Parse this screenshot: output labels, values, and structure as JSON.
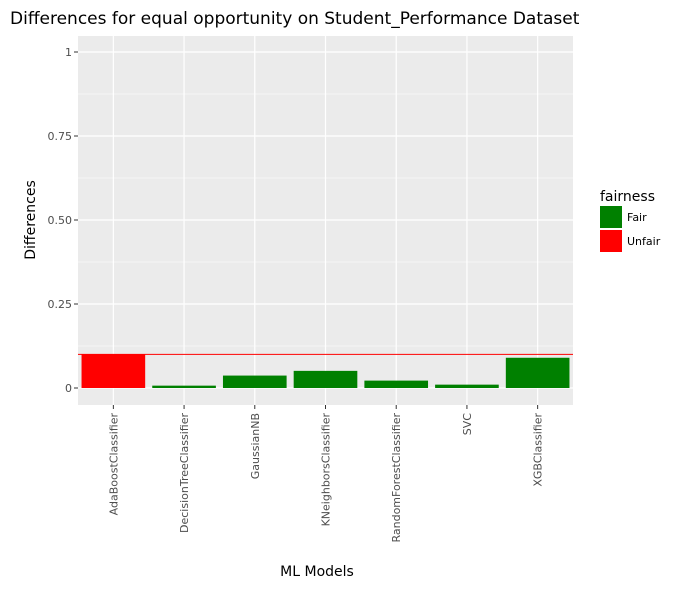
{
  "chart_data": {
    "type": "bar",
    "title": "Differences for equal opportunity on Student_Performance Dataset",
    "xlabel": "ML Models",
    "ylabel": "Differences",
    "categories": [
      "AdaBoostClassifier",
      "DecisionTreeClassifier",
      "GaussianNB",
      "KNeighborsClassifier",
      "RandomForestClassifier",
      "SVC",
      "XGBClassifier"
    ],
    "values": [
      0.1,
      0.007,
      0.037,
      0.051,
      0.022,
      0.01,
      0.09
    ],
    "fairness": [
      "Unfair",
      "Fair",
      "Fair",
      "Fair",
      "Fair",
      "Fair",
      "Fair"
    ],
    "threshold": 0.1,
    "ylim": [
      -0.05,
      1.05
    ],
    "yticks": [
      0,
      0.25,
      0.5,
      0.75,
      1
    ],
    "ytick_labels": [
      "0",
      "0.25",
      "0.50",
      "0.75",
      "1"
    ],
    "legend": {
      "title": "fairness",
      "placement": "right",
      "entries": [
        {
          "label": "Fair",
          "color": "#008000"
        },
        {
          "label": "Unfair",
          "color": "#ff0000"
        }
      ]
    },
    "colors": {
      "Fair": "#008000",
      "Unfair": "#ff0000",
      "threshold": "#ff0000",
      "panel": "#ebebeb",
      "grid": "#ffffff"
    },
    "grid": true
  }
}
